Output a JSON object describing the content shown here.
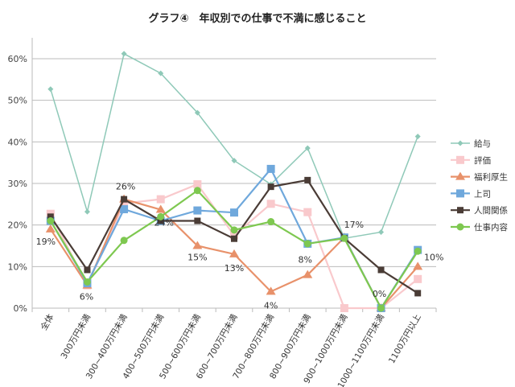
{
  "chart_data": {
    "type": "line",
    "title": "グラフ④　年収別での仕事で不満に感じること",
    "xlabel": "",
    "ylabel": "",
    "ylim": [
      0,
      60
    ],
    "yticks": [
      "0%",
      "10%",
      "20%",
      "30%",
      "40%",
      "50%",
      "60%"
    ],
    "grid": true,
    "legend_position": "right",
    "categories": [
      "全体",
      "300万円未満",
      "300~400万円未満",
      "400~500万円未満",
      "500~600万円未満",
      "600~700万円未満",
      "700~800万円未満",
      "800~900万円未満",
      "900~1000万円未満",
      "1000~1100万円未満",
      "1100万円以上"
    ],
    "series": [
      {
        "name": "給与",
        "color": "#8fc9b8",
        "marker": "diamond",
        "values": [
          52.7,
          23.2,
          61.2,
          56.5,
          47.0,
          35.5,
          29.8,
          38.5,
          16.8,
          18.3,
          41.3
        ]
      },
      {
        "name": "評価",
        "color": "#f9c9cc",
        "marker": "square",
        "values": [
          22.7,
          5.5,
          25.2,
          26.2,
          29.8,
          17.5,
          25.1,
          23.1,
          0,
          0,
          7.0
        ]
      },
      {
        "name": "福利厚生",
        "color": "#e8916a",
        "marker": "triangle",
        "values": [
          19,
          5.5,
          26.2,
          23.7,
          15,
          13,
          4,
          8,
          17,
          0,
          10
        ]
      },
      {
        "name": "上司",
        "color": "#6fa8dc",
        "marker": "square",
        "values": [
          21,
          6,
          23.8,
          21,
          23.5,
          23,
          33.5,
          15.5,
          17,
          0,
          14
        ]
      },
      {
        "name": "人間関係",
        "color": "#4a3c36",
        "marker": "smallsquare",
        "values": [
          22,
          9.2,
          26.2,
          21,
          21,
          16.7,
          29.2,
          30.8,
          16.8,
          9.2,
          3.6
        ]
      },
      {
        "name": "仕事内容",
        "color": "#7ec850",
        "marker": "circle",
        "values": [
          21,
          6.3,
          16.3,
          22,
          28.3,
          18.8,
          20.8,
          15.5,
          16.8,
          0,
          13.7
        ]
      }
    ],
    "data_labels": {
      "series": "福利厚生",
      "labels": [
        "19%",
        "6%",
        "26%",
        "24%",
        "15%",
        "13%",
        "4%",
        "8%",
        "17%",
        "0%",
        "10%"
      ]
    }
  }
}
